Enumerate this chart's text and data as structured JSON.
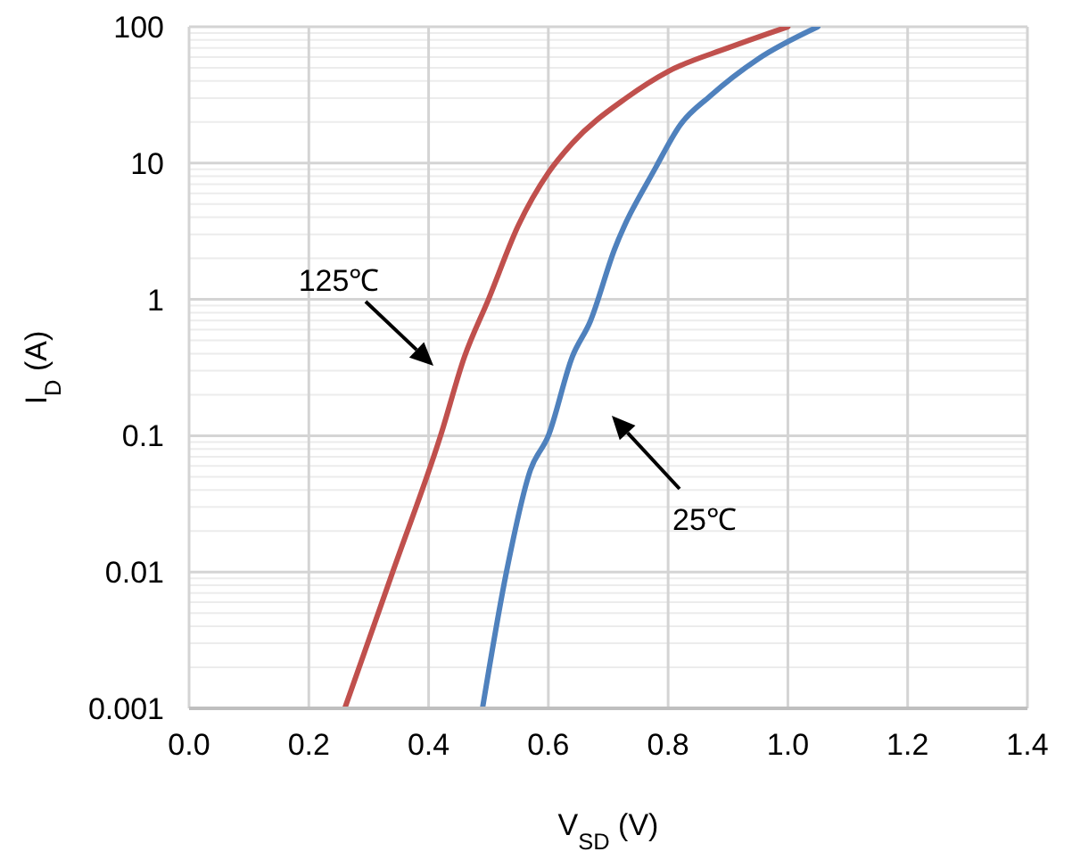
{
  "chart_data": {
    "type": "line",
    "xlabel": "V$_{SD}$ (V)",
    "ylabel": "I$_{D}$ (A)",
    "log": "y",
    "grid": true,
    "xlim": [
      0,
      1.4
    ],
    "xticks": [
      {
        "value": 0,
        "label": "0.0"
      },
      {
        "value": 0.2,
        "label": "0.2"
      },
      {
        "value": 0.4,
        "label": "0.4"
      },
      {
        "value": 0.6,
        "label": "0.6"
      },
      {
        "value": 0.8,
        "label": "0.8"
      },
      {
        "value": 1,
        "label": "1.0"
      },
      {
        "value": 1.2,
        "label": "1.2"
      },
      {
        "value": 1.4,
        "label": "1.4"
      }
    ],
    "ylim": [
      0.001,
      100
    ],
    "yticks": [
      0.001,
      {
        "value": 0.002,
        "label": null
      },
      {
        "value": 0.003,
        "label": null
      },
      {
        "value": 0.004,
        "label": null
      },
      {
        "value": 0.005,
        "label": null
      },
      {
        "value": 0.006,
        "label": null
      },
      {
        "value": 0.007,
        "label": null
      },
      {
        "value": 0.008,
        "label": null
      },
      {
        "value": 0.009,
        "label": null
      },
      0.01,
      {
        "value": 0.02,
        "label": null
      },
      {
        "value": 0.03,
        "label": null
      },
      {
        "value": 0.04,
        "label": null
      },
      {
        "value": 0.05,
        "label": null
      },
      {
        "value": 0.06,
        "label": null
      },
      {
        "value": 0.07,
        "label": null
      },
      {
        "value": 0.08,
        "label": null
      },
      {
        "value": 0.09,
        "label": null
      },
      0.1,
      {
        "value": 0.2,
        "label": null
      },
      {
        "value": 0.3,
        "label": null
      },
      {
        "value": 0.4,
        "label": null
      },
      {
        "value": 0.5,
        "label": null
      },
      {
        "value": 0.6,
        "label": null
      },
      {
        "value": 0.7,
        "label": null
      },
      {
        "value": 0.8,
        "label": null
      },
      {
        "value": 0.9,
        "label": null
      },
      1,
      {
        "value": 2,
        "label": null
      },
      {
        "value": 3,
        "label": null
      },
      {
        "value": 4,
        "label": null
      },
      {
        "value": 5,
        "label": null
      },
      {
        "value": 6,
        "label": null
      },
      {
        "value": 7,
        "label": null
      },
      {
        "value": 8,
        "label": null
      },
      {
        "value": 9,
        "label": null
      },
      10,
      {
        "value": 20,
        "label": null
      },
      {
        "value": 30,
        "label": null
      },
      {
        "value": 40,
        "label": null
      },
      {
        "value": 50,
        "label": null
      },
      {
        "value": 60,
        "label": null
      },
      {
        "value": 70,
        "label": null
      },
      {
        "value": 80,
        "label": null
      },
      {
        "value": 90,
        "label": null
      },
      100
    ],
    "series": [
      {
        "color": "#c0504d",
        "x": [
          0.26,
          0.34,
          0.42,
          0.46,
          0.5,
          0.55,
          0.6,
          0.64,
          0.73,
          0.8,
          0.9,
          1.0
        ],
        "values": [
          0.001,
          0.01,
          0.1,
          0.38,
          1,
          3.5,
          8.5,
          14,
          30,
          47,
          70,
          100
        ]
      },
      {
        "color": "#4f81bd",
        "x": [
          0.49,
          0.53,
          0.57,
          0.6,
          0.64,
          0.67,
          0.71,
          0.78,
          0.82,
          0.87,
          0.95,
          1.05
        ],
        "values": [
          0.001,
          0.01,
          0.056,
          0.1,
          0.38,
          0.69,
          2.3,
          9.4,
          19,
          31,
          58,
          100
        ]
      }
    ],
    "annotations": [
      "125℃",
      "25℃"
    ]
  }
}
